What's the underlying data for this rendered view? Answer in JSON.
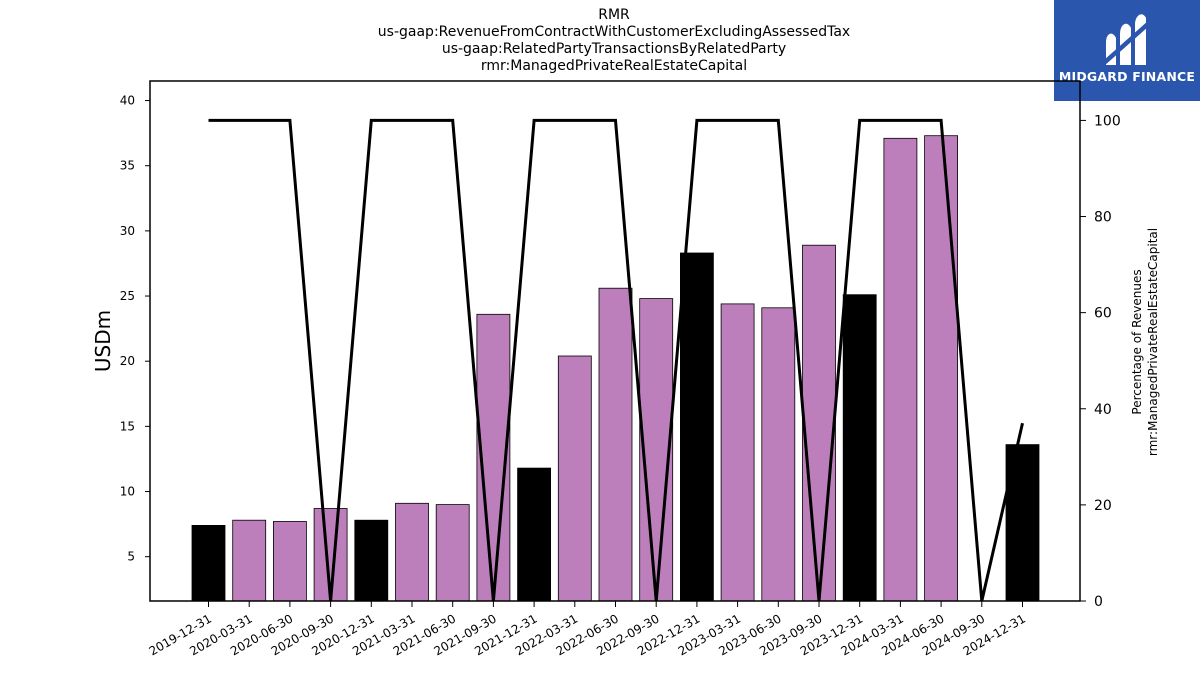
{
  "title_lines": [
    "RMR",
    "us-gaap:RevenueFromContractWithCustomerExcludingAssessedTax",
    "us-gaap:RelatedPartyTransactionsByRelatedParty",
    "rmr:ManagedPrivateRealEstateCapital"
  ],
  "logo": {
    "text": "MIDGARD FINANCE",
    "background": "#2b56ad"
  },
  "chart_data": {
    "type": "bar",
    "categories": [
      "2019-12-31",
      "2020-03-31",
      "2020-06-30",
      "2020-09-30",
      "2020-12-31",
      "2021-03-31",
      "2021-06-30",
      "2021-09-30",
      "2021-12-31",
      "2022-03-31",
      "2022-06-30",
      "2022-09-30",
      "2022-12-31",
      "2023-03-31",
      "2023-06-30",
      "2023-09-30",
      "2023-12-31",
      "2024-03-31",
      "2024-06-30",
      "2024-09-30",
      "2024-12-31"
    ],
    "series": [
      {
        "type": "bar",
        "axis": "left",
        "values": [
          7.4,
          7.8,
          7.7,
          8.7,
          7.8,
          9.1,
          9.0,
          23.6,
          11.8,
          20.4,
          25.6,
          24.8,
          28.3,
          24.4,
          24.1,
          28.9,
          25.1,
          37.1,
          37.3,
          0,
          13.6
        ],
        "colors": [
          "#000000",
          "#bc7fbc",
          "#bc7fbc",
          "#bc7fbc",
          "#000000",
          "#bc7fbc",
          "#bc7fbc",
          "#bc7fbc",
          "#000000",
          "#bc7fbc",
          "#bc7fbc",
          "#bc7fbc",
          "#000000",
          "#bc7fbc",
          "#bc7fbc",
          "#bc7fbc",
          "#000000",
          "#bc7fbc",
          "#bc7fbc",
          "#bc7fbc",
          "#000000"
        ]
      },
      {
        "type": "line",
        "axis": "right",
        "values": [
          100,
          100,
          100,
          0,
          100,
          100,
          100,
          0,
          100,
          100,
          100,
          0,
          100,
          100,
          100,
          0,
          100,
          100,
          100,
          0,
          37
        ],
        "color": "#000000"
      }
    ],
    "ylabel": "USDm",
    "y2label_lines": [
      "Percentage of Revenues",
      "rmr:ManagedPrivateRealEstateCapital"
    ],
    "ylim": [
      1.6,
      41.5
    ],
    "y2lim": [
      0,
      108.2
    ],
    "yticks": [
      5,
      10,
      15,
      20,
      25,
      30,
      35,
      40
    ],
    "y2ticks": [
      0,
      20,
      40,
      60,
      80,
      100
    ],
    "grid": false,
    "legend": "none"
  }
}
